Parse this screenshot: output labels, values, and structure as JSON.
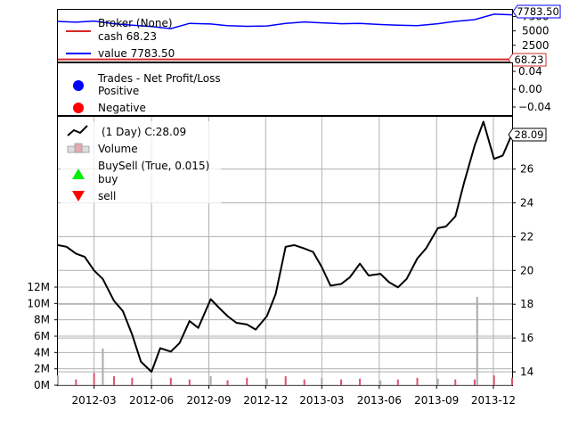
{
  "chart_data": [
    {
      "type": "line",
      "panel": "broker",
      "title": "",
      "legend_position": "top-left",
      "legend": [
        "Broker (None)",
        "cash 68.23",
        "value 7783.50"
      ],
      "series": [
        {
          "name": "cash 68.23",
          "color": "#d62728",
          "x": [
            "2012-01-03",
            "2013-12-31"
          ],
          "values": [
            68.23,
            68.23
          ]
        },
        {
          "name": "value 7783.50",
          "color": "#0000ff",
          "x": [
            "2012-01-03",
            "2012-02-01",
            "2012-03-01",
            "2012-04-02",
            "2012-05-01",
            "2012-06-01",
            "2012-07-02",
            "2012-08-01",
            "2012-09-04",
            "2012-10-01",
            "2012-11-01",
            "2012-12-03",
            "2013-01-02",
            "2013-02-01",
            "2013-03-01",
            "2013-04-01",
            "2013-05-01",
            "2013-06-03",
            "2013-07-01",
            "2013-08-01",
            "2013-09-03",
            "2013-10-01",
            "2013-11-01",
            "2013-12-02",
            "2013-12-31"
          ],
          "values": [
            6650,
            6500,
            6700,
            6250,
            6000,
            5750,
            5400,
            6300,
            6200,
            5900,
            5800,
            5850,
            6300,
            6550,
            6400,
            6250,
            6300,
            6100,
            6000,
            5900,
            6250,
            6650,
            6950,
            7900,
            7783.5
          ]
        }
      ],
      "y_ticks": [
        2500,
        5000,
        7500
      ],
      "value_tags": [
        "7783.50",
        "68.23"
      ],
      "grid": false
    },
    {
      "type": "scatter",
      "panel": "trades",
      "legend_position": "top-left",
      "legend": [
        {
          "label": "Trades - Net Profit/Loss",
          "marker": "none"
        },
        {
          "label": "Positive",
          "marker": "circle",
          "color": "#0000ff"
        },
        {
          "label": "Negative",
          "marker": "circle",
          "color": "#ff0000"
        }
      ],
      "series": [],
      "y_ticks": [
        "0.04",
        "0.00",
        "−0.04"
      ],
      "ylim": [
        -0.06,
        0.06
      ],
      "grid": false
    },
    {
      "type": "line",
      "panel": "price",
      "legend_position": "top-left",
      "legend": [
        {
          "label": "(1 Day) C:28.09",
          "marker": "line",
          "color": "#000000"
        },
        {
          "label": "Volume",
          "marker": "bars",
          "color": "#e0a0aa"
        },
        {
          "label": "BuySell (True, 0.015)",
          "marker": "none"
        },
        {
          "label": "buy",
          "marker": "triangle-up",
          "color": "#00ee00"
        },
        {
          "label": "sell",
          "marker": "triangle-down",
          "color": "#ff0000"
        }
      ],
      "x": [
        "2012-01-03",
        "2012-01-17",
        "2012-02-01",
        "2012-02-15",
        "2012-03-01",
        "2012-03-15",
        "2012-04-02",
        "2012-04-16",
        "2012-05-01",
        "2012-05-15",
        "2012-06-01",
        "2012-06-15",
        "2012-07-02",
        "2012-07-16",
        "2012-08-01",
        "2012-08-15",
        "2012-09-04",
        "2012-09-17",
        "2012-10-01",
        "2012-10-15",
        "2012-11-01",
        "2012-11-15",
        "2012-12-03",
        "2012-12-17",
        "2013-01-02",
        "2013-01-16",
        "2013-02-01",
        "2013-02-15",
        "2013-03-01",
        "2013-03-15",
        "2013-04-01",
        "2013-04-15",
        "2013-05-01",
        "2013-05-15",
        "2013-06-03",
        "2013-06-17",
        "2013-07-01",
        "2013-07-15",
        "2013-08-01",
        "2013-08-15",
        "2013-09-03",
        "2013-09-16",
        "2013-10-01",
        "2013-10-15",
        "2013-11-01",
        "2013-11-15",
        "2013-12-02",
        "2013-12-16",
        "2013-12-31"
      ],
      "series": [
        {
          "name": "(1 Day) C:28.09",
          "color": "#000000",
          "values": [
            21.5,
            21.4,
            21.0,
            20.8,
            20.0,
            19.5,
            18.2,
            17.6,
            16.2,
            14.6,
            14.0,
            15.4,
            15.2,
            15.7,
            17.0,
            16.6,
            18.3,
            17.8,
            17.3,
            16.9,
            16.8,
            16.5,
            17.3,
            18.6,
            21.4,
            21.5,
            21.3,
            21.1,
            20.2,
            19.1,
            19.2,
            19.6,
            20.4,
            19.7,
            19.8,
            19.3,
            19.0,
            19.5,
            20.7,
            21.3,
            22.5,
            22.6,
            23.2,
            25.2,
            27.4,
            28.8,
            26.6,
            26.8,
            28.09
          ]
        }
      ],
      "y_ticks": [
        14,
        16,
        18,
        20,
        22,
        24,
        26
      ],
      "value_tag": "28.09",
      "grid": true
    },
    {
      "type": "bar",
      "panel": "volume",
      "legend": [
        "Volume"
      ],
      "categories": [
        "2012-01-03",
        "2012-02-01",
        "2012-03-01",
        "2012-03-15",
        "2012-04-02",
        "2012-05-01",
        "2012-06-01",
        "2012-07-02",
        "2012-08-01",
        "2012-09-04",
        "2012-10-01",
        "2012-11-01",
        "2012-12-03",
        "2013-01-02",
        "2013-02-01",
        "2013-03-01",
        "2013-04-01",
        "2013-05-01",
        "2013-06-03",
        "2013-07-01",
        "2013-08-01",
        "2013-09-03",
        "2013-10-01",
        "2013-11-01",
        "2013-11-05",
        "2013-12-02",
        "2013-12-31"
      ],
      "values": [
        1200000,
        700000,
        1500000,
        4500000,
        1100000,
        900000,
        800000,
        900000,
        700000,
        1100000,
        600000,
        900000,
        800000,
        1100000,
        700000,
        900000,
        700000,
        800000,
        600000,
        700000,
        900000,
        800000,
        700000,
        700000,
        10800000,
        1200000,
        900000
      ],
      "y_ticks": [
        "0M",
        "2M",
        "4M",
        "6M",
        "8M",
        "10M",
        "12M"
      ],
      "ylim": [
        0,
        12000000
      ],
      "x_ticks": [
        "2012-03",
        "2012-06",
        "2012-09",
        "2012-12",
        "2013-03",
        "2013-06",
        "2013-09",
        "2013-12"
      ]
    }
  ]
}
